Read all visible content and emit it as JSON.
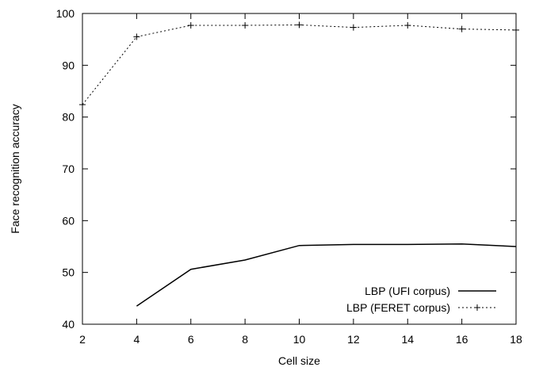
{
  "chart_data": {
    "type": "line",
    "xlabel": "Cell size",
    "ylabel": "Face recognition accuracy",
    "xlim": [
      2,
      18
    ],
    "ylim": [
      40,
      100
    ],
    "xticks": [
      "2",
      "4",
      "6",
      "8",
      "10",
      "12",
      "14",
      "16",
      "18"
    ],
    "yticks": [
      "40",
      "50",
      "60",
      "70",
      "80",
      "90",
      "100"
    ],
    "grid": false,
    "legend_position": "bottom-right",
    "series": [
      {
        "name": "LBP (UFI corpus)",
        "style": "solid",
        "markers": false,
        "color": "#000000",
        "x": [
          4,
          6,
          8,
          10,
          12,
          14,
          16,
          18
        ],
        "y": [
          43.5,
          50.6,
          52.4,
          55.2,
          55.4,
          55.4,
          55.5,
          55.0
        ]
      },
      {
        "name": "LBP (FERET corpus)",
        "style": "dotted",
        "markers": true,
        "color": "#000000",
        "x": [
          2,
          4,
          6,
          8,
          10,
          12,
          14,
          16,
          18
        ],
        "y": [
          82.4,
          95.5,
          97.7,
          97.7,
          97.8,
          97.3,
          97.7,
          97.0,
          96.8
        ]
      }
    ]
  }
}
